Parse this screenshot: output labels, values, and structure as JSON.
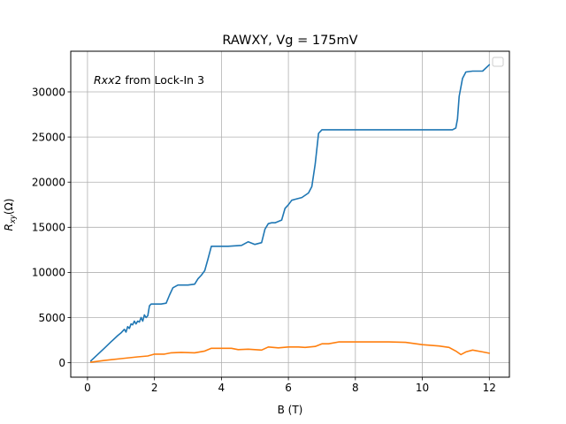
{
  "chart_data": {
    "type": "line",
    "title": "RAWXY, Vg = 175mV",
    "xlabel": "B (T)",
    "ylabel_main": "R",
    "ylabel_sub": "xy",
    "ylabel_unit": "(Ω)",
    "annotation": {
      "italic": "Rxx",
      "rest": "2 from Lock-In 3"
    },
    "xlim": [
      -0.5,
      12.6
    ],
    "ylim": [
      -1600,
      34500
    ],
    "xticks": [
      0,
      2,
      4,
      6,
      8,
      10,
      12
    ],
    "xtick_labels": [
      "0",
      "2",
      "4",
      "6",
      "8",
      "10",
      "12"
    ],
    "yticks": [
      0,
      5000,
      10000,
      15000,
      20000,
      25000,
      30000
    ],
    "ytick_labels": [
      "0",
      "5000",
      "10000",
      "15000",
      "20000",
      "25000",
      "30000"
    ],
    "grid": true,
    "legend": {
      "placement": "top-right",
      "entries": []
    },
    "series": [
      {
        "color": "#1f77b4",
        "x": [
          0.1,
          0.3,
          0.5,
          0.7,
          0.9,
          1.0,
          1.1,
          1.15,
          1.2,
          1.25,
          1.3,
          1.35,
          1.4,
          1.45,
          1.5,
          1.55,
          1.6,
          1.65,
          1.7,
          1.75,
          1.8,
          1.85,
          1.9,
          2.0,
          2.2,
          2.35,
          2.45,
          2.55,
          2.7,
          3.0,
          3.2,
          3.3,
          3.4,
          3.5,
          3.6,
          3.7,
          3.8,
          4.2,
          4.6,
          4.8,
          5.0,
          5.2,
          5.3,
          5.4,
          5.5,
          5.6,
          5.8,
          5.9,
          6.0,
          6.1,
          6.2,
          6.4,
          6.6,
          6.7,
          6.8,
          6.9,
          7.0,
          7.5,
          8.0,
          9.0,
          10.0,
          10.5,
          10.9,
          11.0,
          11.05,
          11.1,
          11.2,
          11.3,
          11.5,
          11.8,
          12.0
        ],
        "y": [
          200,
          900,
          1600,
          2300,
          3000,
          3300,
          3700,
          3400,
          4000,
          3800,
          4300,
          4200,
          4600,
          4300,
          4600,
          4500,
          5000,
          4600,
          5300,
          5000,
          5200,
          6300,
          6500,
          6500,
          6500,
          6600,
          7500,
          8300,
          8600,
          8600,
          8700,
          9300,
          9700,
          10200,
          11500,
          12900,
          12900,
          12900,
          13000,
          13400,
          13100,
          13300,
          14800,
          15400,
          15500,
          15500,
          15800,
          17100,
          17500,
          18000,
          18100,
          18300,
          18800,
          19500,
          22000,
          25400,
          25800,
          25800,
          25800,
          25800,
          25800,
          25800,
          25800,
          26000,
          27000,
          29500,
          31500,
          32200,
          32300,
          32300,
          33000
        ]
      },
      {
        "color": "#ff7f0e",
        "x": [
          0.1,
          0.5,
          1.0,
          1.5,
          1.8,
          2.0,
          2.3,
          2.5,
          2.8,
          3.2,
          3.5,
          3.7,
          4.0,
          4.3,
          4.5,
          4.8,
          5.2,
          5.4,
          5.7,
          6.0,
          6.3,
          6.5,
          6.8,
          7.0,
          7.2,
          7.5,
          8.0,
          8.5,
          9.0,
          9.5,
          10.0,
          10.5,
          10.8,
          11.0,
          11.15,
          11.3,
          11.5,
          11.8,
          12.0
        ],
        "y": [
          50,
          250,
          450,
          650,
          750,
          950,
          950,
          1100,
          1150,
          1100,
          1300,
          1600,
          1600,
          1600,
          1450,
          1500,
          1400,
          1750,
          1650,
          1750,
          1750,
          1700,
          1800,
          2100,
          2100,
          2300,
          2300,
          2300,
          2300,
          2250,
          2000,
          1850,
          1700,
          1300,
          900,
          1200,
          1400,
          1200,
          1050
        ]
      }
    ]
  }
}
